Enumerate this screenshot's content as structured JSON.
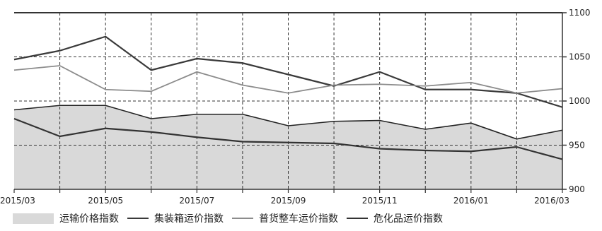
{
  "chart_data": {
    "type": "line",
    "x": [
      "2015/03",
      "2015/04",
      "2015/05",
      "2015/06",
      "2015/07",
      "2015/08",
      "2015/09",
      "2015/10",
      "2015/11",
      "2015/12",
      "2016/01",
      "2016/02",
      "2016/03"
    ],
    "x_tick_labels": [
      "2015/03",
      "2015/05",
      "2015/07",
      "2015/09",
      "2015/11",
      "2016/01",
      "2016/03"
    ],
    "y_tick_labels": [
      "900",
      "950",
      "1000",
      "1050",
      "1100"
    ],
    "ylim": [
      900,
      1100
    ],
    "y_axis_side": "right",
    "grid": true,
    "legend_position": "bottom",
    "series": [
      {
        "name": "运输价格指数",
        "style": "area",
        "color": "#d9d9d9",
        "values": [
          990,
          995,
          995,
          980,
          985,
          985,
          972,
          977,
          978,
          968,
          975,
          957,
          967
        ]
      },
      {
        "name": "集装箱运价指数",
        "style": "line",
        "color": "#3a3a3a",
        "values": [
          1047,
          1057,
          1073,
          1035,
          1048,
          1043,
          1030,
          1017,
          1033,
          1013,
          1013,
          1009,
          993
        ]
      },
      {
        "name": "普货整车运价指数",
        "style": "line",
        "color": "#8c8c8c",
        "values": [
          1035,
          1040,
          1013,
          1011,
          1033,
          1018,
          1009,
          1018,
          1019,
          1017,
          1021,
          1009,
          1014
        ]
      },
      {
        "name": "危化品运价指数",
        "style": "line",
        "color": "#333333",
        "values": [
          980,
          960,
          969,
          965,
          959,
          954,
          953,
          952,
          946,
          944,
          943,
          948,
          934
        ]
      }
    ]
  }
}
